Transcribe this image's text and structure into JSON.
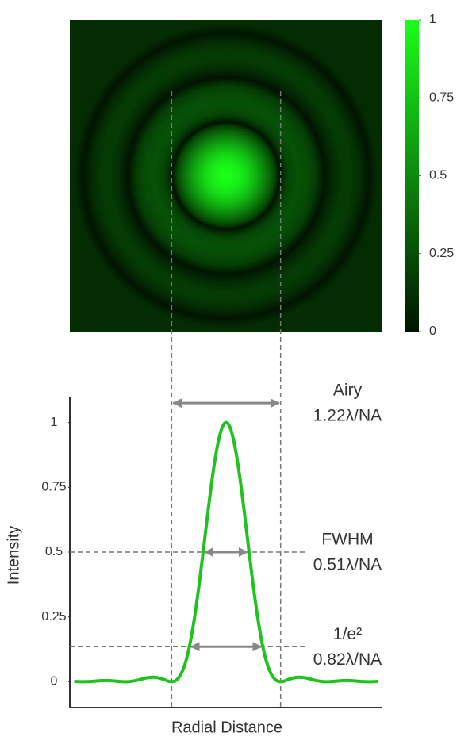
{
  "chart_data": [
    {
      "type": "image",
      "xlim": [
        -1.75,
        1.75
      ],
      "ylim": [
        -1.75,
        1.75
      ],
      "colorbar": {
        "clim": [
          0,
          1
        ],
        "ticks": [
          0,
          0.25,
          0.5,
          0.75,
          1
        ],
        "colors": [
          "#001400",
          "#19ff19"
        ]
      }
    },
    {
      "type": "line",
      "color": "#1ec31e",
      "x": [
        -1.7,
        -1.6,
        -1.5,
        -1.4,
        -1.3,
        -1.2,
        -1.1,
        -1.0,
        -0.9,
        -0.8,
        -0.7,
        -0.65,
        -0.6,
        -0.55,
        -0.5,
        -0.45,
        -0.4,
        -0.35,
        -0.3,
        -0.25,
        -0.2,
        -0.15,
        -0.1,
        -0.05,
        0,
        0.05,
        0.1,
        0.15,
        0.2,
        0.25,
        0.3,
        0.35,
        0.4,
        0.45,
        0.5,
        0.55,
        0.6,
        0.65,
        0.7,
        0.8,
        0.9,
        1.0,
        1.1,
        1.2,
        1.3,
        1.4,
        1.5,
        1.6,
        1.7
      ],
      "values": [
        0.001,
        0,
        0.001,
        0.004,
        0.004,
        0.001,
        0,
        0.005,
        0.014,
        0.017,
        0.009,
        0.002,
        0,
        0.008,
        0.033,
        0.08,
        0.154,
        0.256,
        0.381,
        0.521,
        0.665,
        0.798,
        0.905,
        0.976,
        1,
        0.976,
        0.905,
        0.798,
        0.665,
        0.521,
        0.381,
        0.256,
        0.154,
        0.08,
        0.033,
        0.008,
        0,
        0.002,
        0.009,
        0.017,
        0.014,
        0.005,
        0,
        0.001,
        0.004,
        0.004,
        0.001,
        0,
        0.001
      ],
      "xlabel": "Radial Distance",
      "ylabel": "Intensity",
      "xlim": [
        -1.75,
        1.75
      ],
      "ylim": [
        -0.1,
        1.1
      ],
      "yticks": [
        0,
        0.25,
        0.5,
        0.75,
        1
      ],
      "annotations": [
        {
          "name": "Airy",
          "text": "1.22λ/NA",
          "x": [
            -0.61,
            0.61
          ],
          "y": 1.075
        },
        {
          "name": "FWHM",
          "text": "0.51λ/NA",
          "x": [
            -0.255,
            0.255
          ],
          "y": 0.5
        },
        {
          "name": "1/e²",
          "text": "0.82λ/NA",
          "x": [
            -0.41,
            0.41
          ],
          "y": 0.135
        }
      ]
    }
  ]
}
